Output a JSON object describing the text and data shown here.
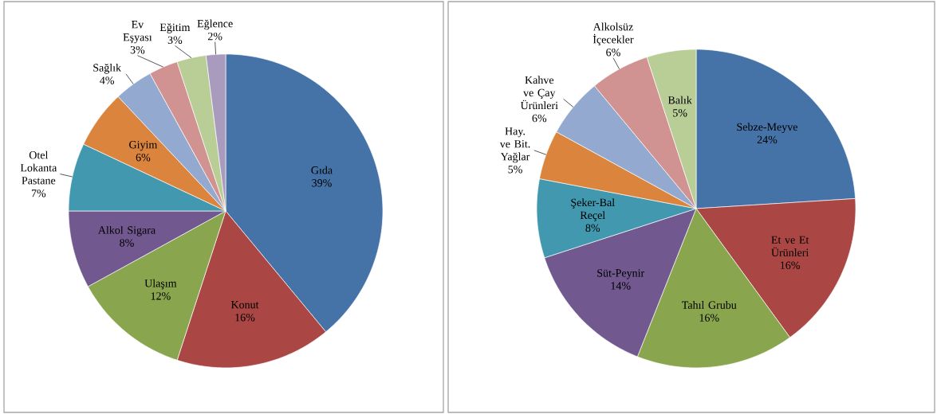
{
  "chart_data": [
    {
      "type": "pie",
      "categories": [
        "Gıda",
        "Konut",
        "Ulaşım",
        "Alkol Sigara",
        "Otel Lokanta Pastane",
        "Giyim",
        "Sağlık",
        "Ev Eşyası",
        "Eğitim",
        "Eğlence"
      ],
      "values": [
        39,
        16,
        12,
        8,
        7,
        6,
        4,
        3,
        3,
        2
      ],
      "value_labels": [
        "39%",
        "16%",
        "12%",
        "8%",
        "7%",
        "6%",
        "4%",
        "3%",
        "3%",
        "2%"
      ],
      "colors": [
        "#4572a7",
        "#aa4643",
        "#89a54e",
        "#71588f",
        "#4198af",
        "#db843d",
        "#93a9cf",
        "#d19392",
        "#b9cd96",
        "#a99bbd"
      ]
    },
    {
      "type": "pie",
      "categories": [
        "Sebze-Meyve",
        "Et ve Et Ürünleri",
        "Tahıl Grubu",
        "Süt-Peynir",
        "Şeker-Bal Reçel",
        "Hay. ve Bit. Yağlar",
        "Kahve ve Çay Ürünleri",
        "Alkolsüz İçecekler",
        "Balık"
      ],
      "values": [
        24,
        16,
        16,
        14,
        8,
        5,
        6,
        6,
        5
      ],
      "value_labels": [
        "24%",
        "16%",
        "16%",
        "14%",
        "8%",
        "5%",
        "6%",
        "6%",
        "5%"
      ],
      "colors": [
        "#4572a7",
        "#aa4643",
        "#89a54e",
        "#71588f",
        "#4198af",
        "#db843d",
        "#93a9cf",
        "#d19392",
        "#b9cd96"
      ]
    }
  ]
}
